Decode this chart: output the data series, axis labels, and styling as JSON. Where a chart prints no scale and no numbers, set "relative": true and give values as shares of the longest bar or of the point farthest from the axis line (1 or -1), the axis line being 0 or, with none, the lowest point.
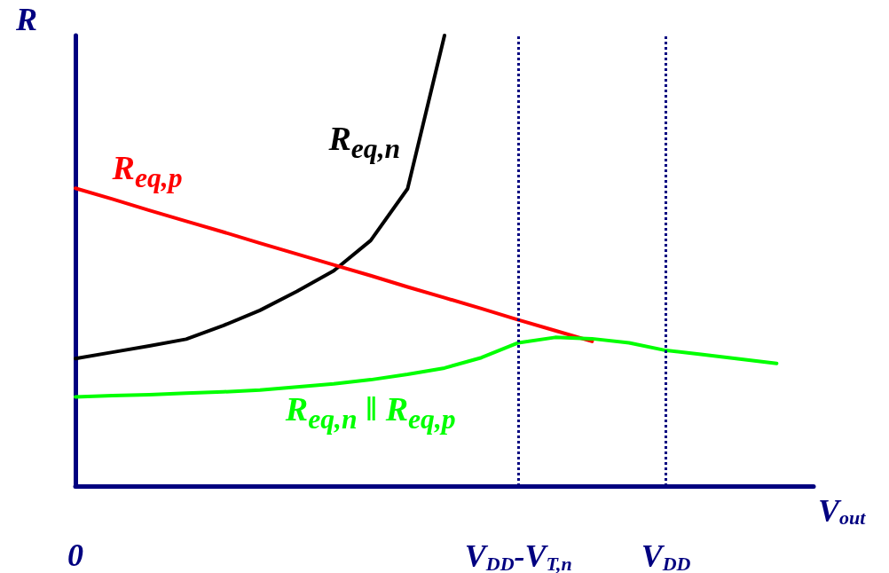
{
  "chart_data": {
    "type": "line",
    "relative": true,
    "ylabel": "R",
    "xlabel": "V$_{out}$",
    "categories": [
      "0",
      null,
      null,
      null,
      null,
      null,
      null,
      null,
      null,
      null,
      null,
      null,
      "V$_{DD}$-V$_{T,n}$",
      null,
      null,
      null,
      "V$_{DD}$",
      null,
      null,
      null,
      null
    ],
    "series": [
      {
        "name": "R$_{eq,n}$",
        "color": "#000000",
        "values": [
          0.283,
          0.297,
          0.311,
          0.326,
          0.356,
          0.39,
          0.432,
          0.478,
          0.545,
          0.66,
          1,
          null,
          null,
          null,
          null,
          null,
          null,
          null,
          null,
          null,
          null
        ]
      },
      {
        "name": "R$_{eq,p}$",
        "color": "#ff0000",
        "values": [
          0.661,
          0.637,
          0.612,
          0.588,
          0.564,
          0.539,
          0.515,
          0.491,
          0.467,
          0.442,
          0.418,
          0.394,
          0.369,
          0.345,
          0.321,
          null,
          null,
          null,
          null,
          null,
          null
        ]
      },
      {
        "name": "R$_{eq,n}$ ‖ R$_{eq,p}$",
        "color": "#00ff00",
        "values": [
          0.198,
          0.201,
          0.203,
          0.206,
          0.209,
          0.213,
          0.22,
          0.227,
          0.236,
          0.248,
          0.262,
          0.285,
          0.318,
          0.33,
          0.327,
          0.318,
          0.301,
          0.292,
          0.282,
          0.272,
          null
        ]
      }
    ],
    "ref_lines": [
      {
        "axis": "x",
        "value": "V$_{DD}$-V$_{T,n}$",
        "color": "#000080",
        "line_style": "dotted"
      },
      {
        "axis": "x",
        "value": "V$_{DD}$",
        "color": "#000080",
        "line_style": "dotted"
      }
    ],
    "legend": false,
    "grid": false,
    "marker": "none",
    "line_style": "solid"
  }
}
